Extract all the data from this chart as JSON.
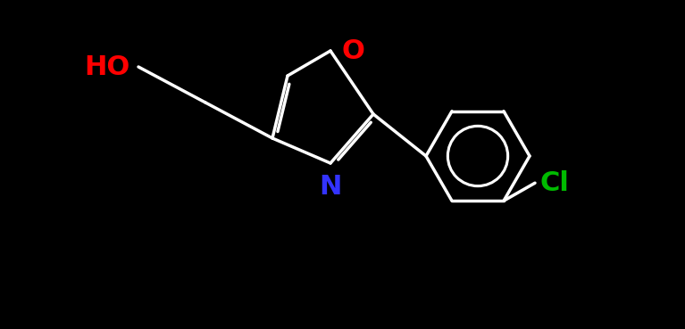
{
  "background_color": "#000000",
  "bond_color": "#ffffff",
  "bond_width": 2.5,
  "HO_label": {
    "text": "HO",
    "color": "#ff0000",
    "fontsize": 20
  },
  "O_label": {
    "text": "O",
    "color": "#ff0000",
    "fontsize": 20
  },
  "N_label": {
    "text": "N",
    "color": "#3333ff",
    "fontsize": 20
  },
  "Cl_label": {
    "text": "Cl",
    "color": "#00bb00",
    "fontsize": 20
  },
  "figsize": [
    7.67,
    3.69
  ],
  "dpi": 100
}
